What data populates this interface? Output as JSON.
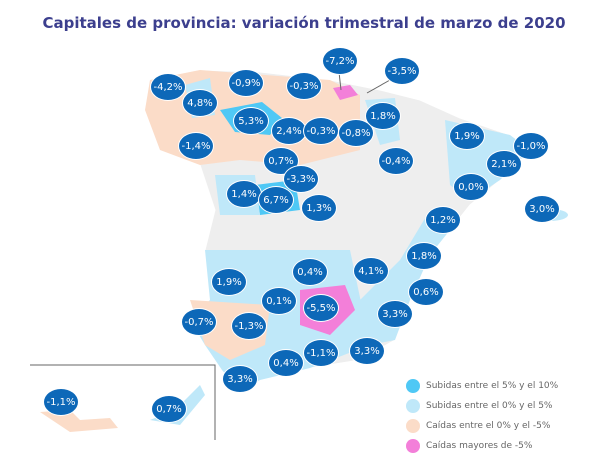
{
  "title": "Capitales de provincia: variación trimestral de marzo de 2020",
  "colors": {
    "rise_5_10": "#4fc8f5",
    "rise_0_5": "#bfe8f9",
    "fall_0_5": "#fbdcc8",
    "fall_gt5": "#f37fd9",
    "no_data": "#eeeeee",
    "bubble": "#0d68b8"
  },
  "legend": [
    {
      "label": "Subidas entre el 5% y el 10%",
      "color": "#4fc8f5"
    },
    {
      "label": "Subidas entre el 0% y el 5%",
      "color": "#bfe8f9"
    },
    {
      "label": "Caídas entre el 0% y el -5%",
      "color": "#fbdcc8"
    },
    {
      "label": "Caídas mayores de -5%",
      "color": "#f37fd9"
    }
  ],
  "labels": [
    "-4,2%",
    "4,8%",
    "-0,9%",
    "-0,3%",
    "-7,2%",
    "-3,5%",
    "5,3%",
    "2,4%",
    "-0,3%",
    "-0,8%",
    "1,8%",
    "1,9%",
    "-1,0%",
    "-1,4%",
    "0,7%",
    "-3,3%",
    "-0,4%",
    "2,1%",
    "0,0%",
    "1,4%",
    "6,7%",
    "1,3%",
    "3,0%",
    "1,2%",
    "1,8%",
    "1,9%",
    "0,4%",
    "4,1%",
    "0,6%",
    "0,1%",
    "-5,5%",
    "-0,7%",
    "-1,3%",
    "3,3%",
    "-1,1%",
    "3,3%",
    "0,4%",
    "3,3%",
    "-1,1%",
    "0,7%"
  ]
}
